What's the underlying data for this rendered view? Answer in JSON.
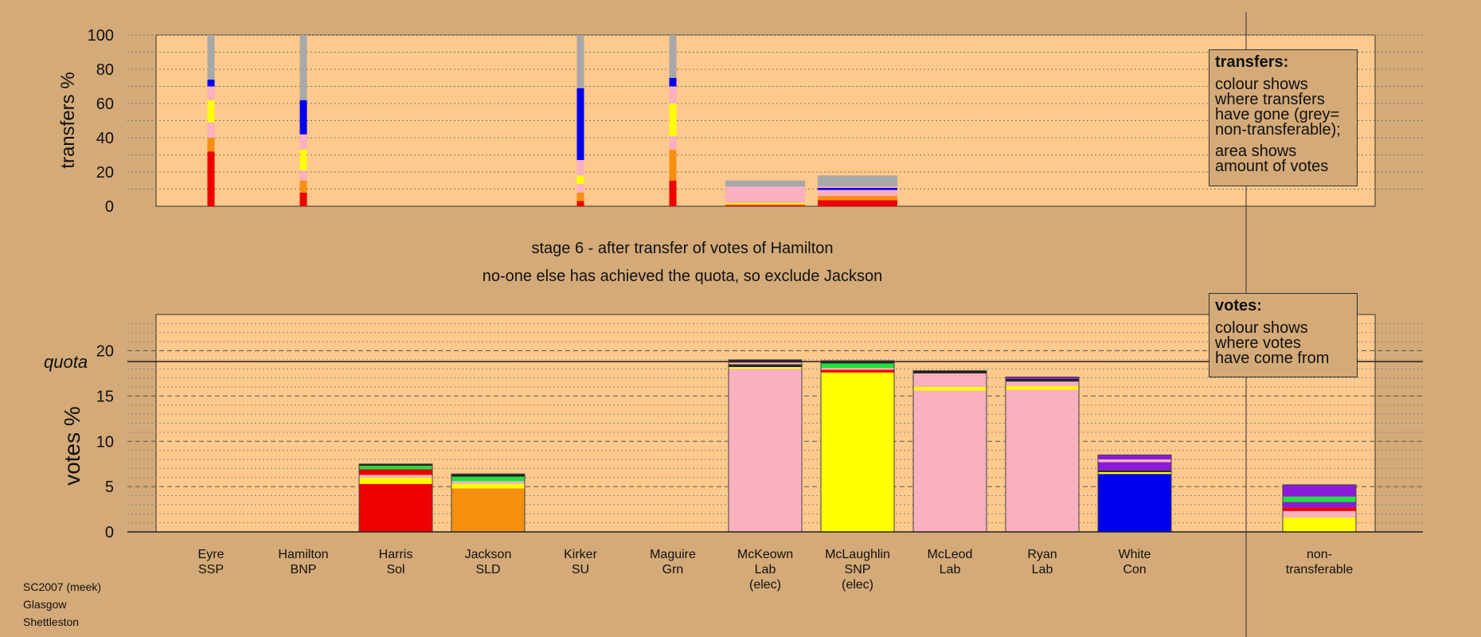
{
  "stage_title": "stage 6 - after transfer of votes of Hamilton",
  "stage_subtitle": "no-one else has achieved the quota, so exclude Jackson",
  "footer": [
    "SC2007 (meek)",
    "Glasgow",
    "Shettleston"
  ],
  "transfers_legend": {
    "title": "transfers:",
    "text1": "colour shows\nwhere transfers\nhave gone (grey=\nnon-transferable);",
    "text2": "area shows\namount of votes"
  },
  "votes_legend": {
    "title": "votes:",
    "text1": "colour shows\nwhere votes\nhave come from"
  },
  "colors": {
    "red": "#ee0000",
    "orange": "#f7900f",
    "pink": "#f9b0c0",
    "yellow": "#ffff00",
    "blue": "#0000ee",
    "grey": "#a8a8a8",
    "green": "#22e040",
    "purple": "#8a1ad8",
    "dark": "#222222",
    "panel": "#fdc98c",
    "background": "#d4aa78"
  },
  "chart_data": [
    {
      "type": "bar",
      "name": "transfers",
      "ylabel": "transfers %",
      "ylim": [
        0,
        100
      ],
      "yticks": [
        0,
        20,
        40,
        60,
        80,
        100
      ],
      "categories": [
        "Eyre",
        "Hamilton",
        "Harris",
        "Jackson",
        "Kirker",
        "Maguire",
        "McKeown",
        "McLaughlin",
        "McLeod",
        "Ryan",
        "White",
        "non-transferable"
      ],
      "bars": [
        {
          "category": "Eyre",
          "width": "thin",
          "segments": [
            [
              "red",
              32
            ],
            [
              "orange",
              8
            ],
            [
              "pink",
              9
            ],
            [
              "yellow",
              13
            ],
            [
              "pink",
              8
            ],
            [
              "blue",
              4
            ],
            [
              "grey",
              26
            ]
          ]
        },
        {
          "category": "Hamilton",
          "width": "thin",
          "segments": [
            [
              "red",
              8
            ],
            [
              "orange",
              7
            ],
            [
              "pink",
              6
            ],
            [
              "yellow",
              12
            ],
            [
              "pink",
              9
            ],
            [
              "blue",
              20
            ],
            [
              "grey",
              38
            ]
          ]
        },
        {
          "category": "Kirker",
          "width": "thin",
          "segments": [
            [
              "red",
              3
            ],
            [
              "orange",
              5
            ],
            [
              "pink",
              5
            ],
            [
              "yellow",
              5
            ],
            [
              "pink",
              9
            ],
            [
              "blue",
              42
            ],
            [
              "grey",
              31
            ]
          ]
        },
        {
          "category": "Maguire",
          "width": "thin",
          "segments": [
            [
              "red",
              15
            ],
            [
              "orange",
              18
            ],
            [
              "pink",
              8
            ],
            [
              "yellow",
              19
            ],
            [
              "pink",
              10
            ],
            [
              "blue",
              5
            ],
            [
              "grey",
              25
            ]
          ]
        },
        {
          "category": "McKeown",
          "width": "full",
          "segments": [
            [
              "red",
              0.6
            ],
            [
              "orange",
              0.6
            ],
            [
              "yellow",
              0.8
            ],
            [
              "pink",
              9.5
            ],
            [
              "grey",
              3.5
            ]
          ]
        },
        {
          "category": "McLaughlin",
          "width": "full",
          "segments": [
            [
              "red",
              3.5
            ],
            [
              "orange",
              2.5
            ],
            [
              "pink",
              3.5
            ],
            [
              "blue",
              1.2
            ],
            [
              "pink",
              0.8
            ],
            [
              "grey",
              6.5
            ]
          ]
        }
      ]
    },
    {
      "type": "bar",
      "name": "votes",
      "ylabel": "votes %",
      "ylim": [
        0,
        24
      ],
      "yticks": [
        0,
        5,
        10,
        15,
        20
      ],
      "quota": 18.8,
      "quota_label": "quota",
      "categories": [
        {
          "name": "Eyre",
          "party": "SSP",
          "note": ""
        },
        {
          "name": "Hamilton",
          "party": "BNP",
          "note": ""
        },
        {
          "name": "Harris",
          "party": "Sol",
          "note": ""
        },
        {
          "name": "Jackson",
          "party": "SLD",
          "note": ""
        },
        {
          "name": "Kirker",
          "party": "SU",
          "note": ""
        },
        {
          "name": "Maguire",
          "party": "Grn",
          "note": ""
        },
        {
          "name": "McKeown",
          "party": "Lab",
          "note": "(elec)"
        },
        {
          "name": "McLaughlin",
          "party": "SNP",
          "note": "(elec)"
        },
        {
          "name": "McLeod",
          "party": "Lab",
          "note": ""
        },
        {
          "name": "Ryan",
          "party": "Lab",
          "note": ""
        },
        {
          "name": "White",
          "party": "Con",
          "note": ""
        },
        {
          "name": "non-",
          "party": "transferable",
          "note": ""
        }
      ],
      "bars": [
        {
          "category": "Harris",
          "segments": [
            [
              "red",
              5.3
            ],
            [
              "yellow",
              0.7
            ],
            [
              "pink",
              0.3
            ],
            [
              "red",
              0.6
            ],
            [
              "green",
              0.4
            ],
            [
              "dark",
              0.2
            ]
          ]
        },
        {
          "category": "Jackson",
          "segments": [
            [
              "orange",
              4.8
            ],
            [
              "yellow",
              0.5
            ],
            [
              "pink",
              0.3
            ],
            [
              "green",
              0.5
            ],
            [
              "dark",
              0.3
            ]
          ]
        },
        {
          "category": "McKeown",
          "segments": [
            [
              "pink",
              18.0
            ],
            [
              "yellow",
              0.2
            ],
            [
              "dark",
              0.3
            ],
            [
              "pink",
              0.2
            ],
            [
              "dark",
              0.3
            ]
          ]
        },
        {
          "category": "McLaughlin",
          "segments": [
            [
              "yellow",
              17.6
            ],
            [
              "red",
              0.3
            ],
            [
              "pink",
              0.2
            ],
            [
              "green",
              0.5
            ],
            [
              "dark",
              0.3
            ]
          ]
        },
        {
          "category": "McLeod",
          "segments": [
            [
              "pink",
              15.6
            ],
            [
              "yellow",
              0.4
            ],
            [
              "pink",
              1.5
            ],
            [
              "dark",
              0.3
            ]
          ]
        },
        {
          "category": "Ryan",
          "segments": [
            [
              "pink",
              15.7
            ],
            [
              "yellow",
              0.4
            ],
            [
              "pink",
              0.5
            ],
            [
              "dark",
              0.3
            ],
            [
              "purple",
              0.2
            ]
          ]
        },
        {
          "category": "White",
          "segments": [
            [
              "blue",
              6.4
            ],
            [
              "yellow",
              0.2
            ],
            [
              "dark",
              0.2
            ],
            [
              "purple",
              0.9
            ],
            [
              "pink",
              0.3
            ],
            [
              "purple",
              0.5
            ]
          ]
        },
        {
          "category": "non-",
          "segments": [
            [
              "yellow",
              1.6
            ],
            [
              "pink",
              0.7
            ],
            [
              "red",
              0.4
            ],
            [
              "purple",
              0.6
            ],
            [
              "green",
              0.6
            ],
            [
              "purple",
              1.3
            ]
          ]
        }
      ]
    }
  ]
}
